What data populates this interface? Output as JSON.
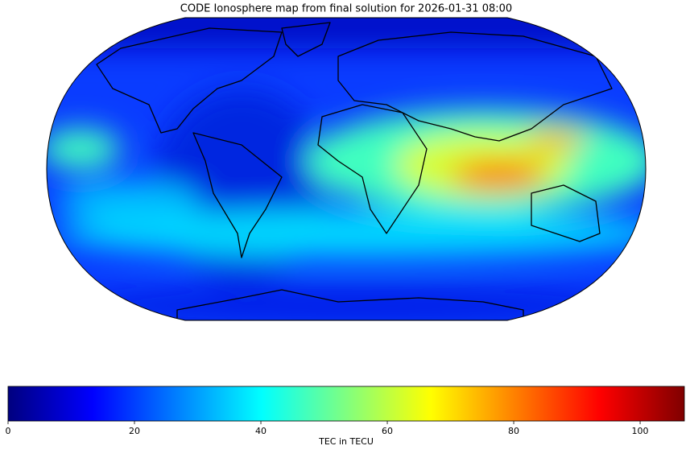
{
  "title": "CODE Ionosphere map from final solution for 2026-01-31 08:00",
  "colorbar": {
    "label": "TEC in TECU",
    "lim": [
      0,
      107
    ],
    "ticks": [
      0,
      20,
      40,
      60,
      80,
      100
    ],
    "colormap": "jet"
  }
}
